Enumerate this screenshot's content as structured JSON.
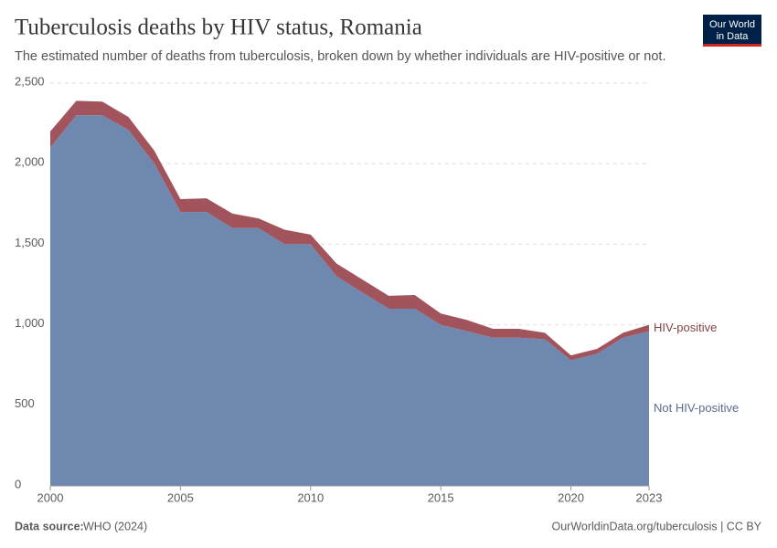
{
  "chart_data": {
    "type": "stacked-area",
    "title": "Tuberculosis deaths by HIV status, Romania",
    "subtitle": "The estimated number of deaths from tuberculosis, broken down by whether individuals are HIV-positive or not.",
    "logo": [
      "Our World",
      "in Data"
    ],
    "source_label": "Data source:",
    "source": "WHO (2024)",
    "credit": "OurWorldinData.org/tuberculosis | CC BY",
    "x": [
      2000,
      2001,
      2002,
      2003,
      2004,
      2005,
      2006,
      2007,
      2008,
      2009,
      2010,
      2011,
      2012,
      2013,
      2014,
      2015,
      2016,
      2017,
      2018,
      2019,
      2020,
      2021,
      2022,
      2023
    ],
    "series": [
      {
        "name": "Not HIV-positive",
        "color": "#6f88b0",
        "values": [
          2100,
          2300,
          2300,
          2210,
          2000,
          1700,
          1700,
          1600,
          1600,
          1500,
          1500,
          1300,
          1200,
          1100,
          1100,
          1000,
          960,
          920,
          920,
          910,
          780,
          820,
          920,
          960
        ]
      },
      {
        "name": "HIV-positive",
        "color": "#a2545c",
        "values": [
          100,
          90,
          85,
          80,
          80,
          80,
          85,
          90,
          60,
          90,
          60,
          80,
          80,
          80,
          85,
          70,
          70,
          55,
          55,
          40,
          30,
          30,
          30,
          40
        ]
      }
    ],
    "xlim": [
      2000,
      2023
    ],
    "xticks": [
      2000,
      2005,
      2010,
      2015,
      2020,
      2023
    ],
    "ylim": [
      0,
      2500
    ],
    "yticks": [
      0,
      500,
      {
        "value": 1000,
        "label": "1,000"
      },
      {
        "value": 1500,
        "label": "1,500"
      },
      {
        "value": 2000,
        "label": "2,000"
      },
      {
        "value": 2500,
        "label": "2,500"
      }
    ],
    "grid": true
  }
}
